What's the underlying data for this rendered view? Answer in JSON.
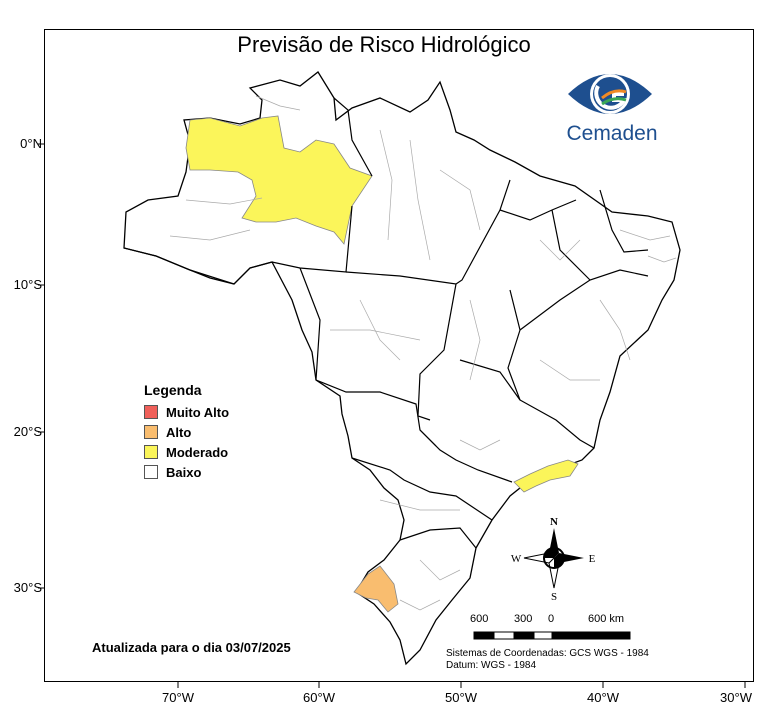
{
  "title": "Previsão de Risco Hidrológico",
  "logo": {
    "text": "Cemaden",
    "colors": {
      "blue": "#1e4f8f",
      "orange": "#f08a24",
      "green": "#3aa655"
    }
  },
  "axes": {
    "lat_labels": [
      "0°N",
      "10°S",
      "20°S",
      "30°S"
    ],
    "lon_labels": [
      "70°W",
      "60°W",
      "50°W",
      "40°W",
      "30°W"
    ]
  },
  "legend": {
    "title": "Legenda",
    "items": [
      {
        "label": "Muito Alto",
        "color": "#f0605a"
      },
      {
        "label": "Alto",
        "color": "#f9bd6f"
      },
      {
        "label": "Moderado",
        "color": "#fbf55a"
      },
      {
        "label": "Baixo",
        "color": "#ffffff"
      }
    ]
  },
  "updated_text": "Atualizada para o dia 03/07/2025",
  "compass": {
    "n": "N",
    "s": "S",
    "e": "E",
    "w": "W"
  },
  "scale_bar": {
    "labels": [
      "600",
      "300",
      "0",
      "600 km"
    ]
  },
  "coordinate_system": {
    "line1": "Sistemas de Coordenadas: GCS WGS - 1984",
    "line2": "Datum: WGS - 1984"
  },
  "risk_areas": [
    {
      "region": "Amazonas (norte)",
      "level": "Moderado"
    },
    {
      "region": "Litoral RJ/SP",
      "level": "Moderado"
    },
    {
      "region": "Rio Grande do Sul (oeste)",
      "level": "Alto"
    }
  ]
}
